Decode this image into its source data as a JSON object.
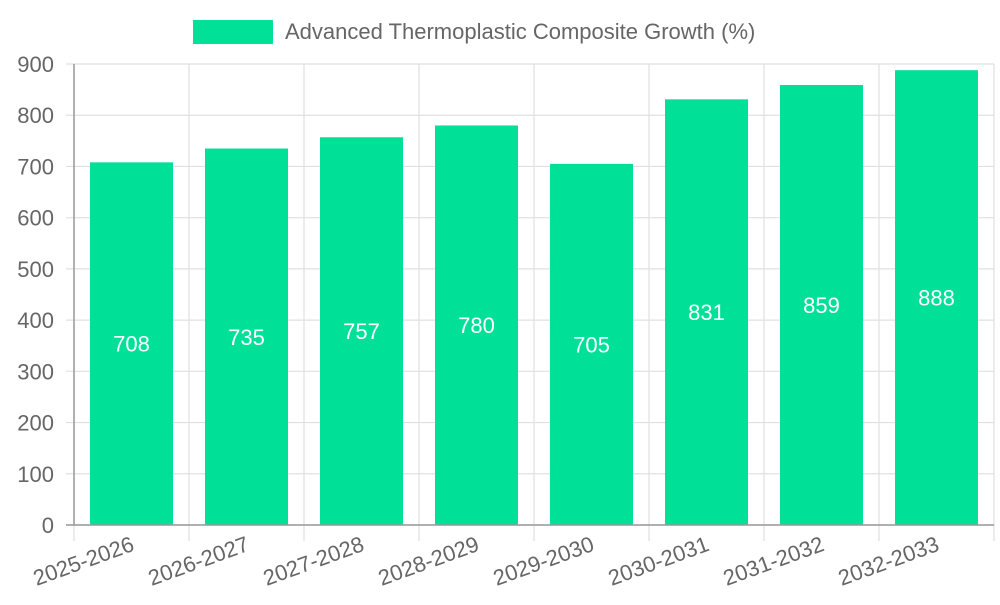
{
  "chart_data": {
    "type": "bar",
    "categories": [
      "2025-2026",
      "2026-2027",
      "2027-2028",
      "2028-2029",
      "2029-2030",
      "2030-2031",
      "2031-2032",
      "2032-2033"
    ],
    "series": [
      {
        "name": "Advanced Thermoplastic Composite Growth (%)",
        "values": [
          708,
          735,
          757,
          780,
          705,
          831,
          859,
          888
        ],
        "color": "#00e096"
      }
    ],
    "ylim": [
      0,
      900
    ],
    "yticks": [
      0,
      100,
      200,
      300,
      400,
      500,
      600,
      700,
      800,
      900
    ],
    "grid": true,
    "legend_position": "top-center",
    "data_labels": true,
    "data_label_color": "#ffffff",
    "axis_text_color": "#666666",
    "grid_color": "#e0e0e0"
  }
}
